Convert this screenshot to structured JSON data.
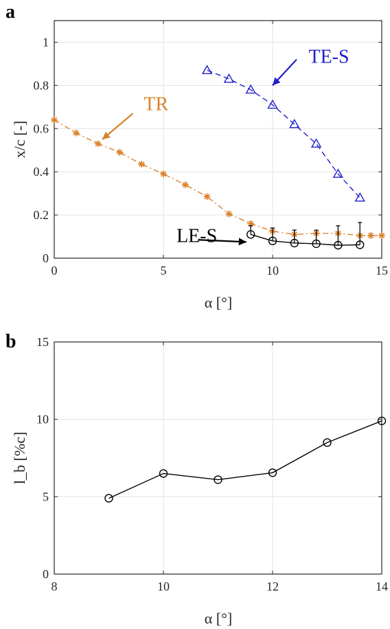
{
  "chart_data": [
    {
      "panel_label": "a",
      "type": "line",
      "xlabel": "α [°]",
      "ylabel": "x/c [-]",
      "xlim": [
        0,
        15
      ],
      "ylim": [
        0,
        1.1
      ],
      "xticks": [
        0,
        5,
        10,
        15
      ],
      "yticks": [
        0,
        0.2,
        0.4,
        0.6,
        0.8,
        1
      ],
      "ytick_labels": [
        "0",
        "0.2",
        "0.4",
        "0.6",
        "0.8",
        "1"
      ],
      "grid": true,
      "series": [
        {
          "name": "TR",
          "color": "#D9822B",
          "marker": "asterisk",
          "line_style": "dash-dot",
          "x": [
            0,
            1,
            2,
            3,
            4,
            5,
            6,
            7,
            8,
            9,
            10,
            11,
            12,
            13,
            14,
            14.5,
            15
          ],
          "y": [
            0.64,
            0.58,
            0.53,
            0.49,
            0.435,
            0.39,
            0.34,
            0.285,
            0.205,
            0.16,
            0.125,
            0.11,
            0.115,
            0.115,
            0.105,
            0.105,
            0.105
          ]
        },
        {
          "name": "TE-S",
          "color": "#1F1FCC",
          "marker": "triangle",
          "line_style": "dashed",
          "x": [
            7,
            8,
            9,
            10,
            11,
            12,
            13,
            14
          ],
          "y": [
            0.87,
            0.83,
            0.78,
            0.71,
            0.62,
            0.53,
            0.39,
            0.28
          ]
        },
        {
          "name": "LE-S",
          "color": "#000000",
          "marker": "circle",
          "line_style": "solid",
          "x": [
            9,
            10,
            11,
            12,
            13,
            14
          ],
          "y": [
            0.11,
            0.08,
            0.07,
            0.067,
            0.06,
            0.062
          ],
          "error_upper": [
            0.15,
            0.14,
            0.13,
            0.13,
            0.15,
            0.165
          ]
        }
      ],
      "annotations": [
        {
          "text": "TE-S",
          "color": "#1F1FCC",
          "x": 11.65,
          "y": 0.905,
          "arrow_to": [
            10,
            0.8
          ],
          "arrow_from": [
            11.1,
            0.92
          ]
        },
        {
          "text": "TR",
          "color": "#D9822B",
          "x": 4.1,
          "y": 0.685,
          "arrow_to": [
            2.2,
            0.55
          ],
          "arrow_from": [
            3.6,
            0.67
          ]
        },
        {
          "text": "LE-S",
          "color": "#000000",
          "x": 5.6,
          "y": 0.075,
          "arrow_to": [
            8.8,
            0.075
          ],
          "arrow_from": [
            6.6,
            0.085
          ]
        }
      ]
    },
    {
      "panel_label": "b",
      "type": "line",
      "xlabel": "α [°]",
      "ylabel": "l_b [%c]",
      "xlim": [
        8,
        14
      ],
      "ylim": [
        0,
        15
      ],
      "xticks": [
        8,
        10,
        12,
        14
      ],
      "yticks": [
        0,
        5,
        10,
        15
      ],
      "ytick_labels": [
        "0",
        "5",
        "10",
        "15"
      ],
      "grid": true,
      "series": [
        {
          "name": "",
          "color": "#000000",
          "marker": "circle",
          "line_style": "solid",
          "x": [
            9,
            10,
            11,
            12,
            13,
            14
          ],
          "y": [
            4.9,
            6.5,
            6.1,
            6.55,
            8.5,
            9.9
          ]
        }
      ]
    }
  ]
}
